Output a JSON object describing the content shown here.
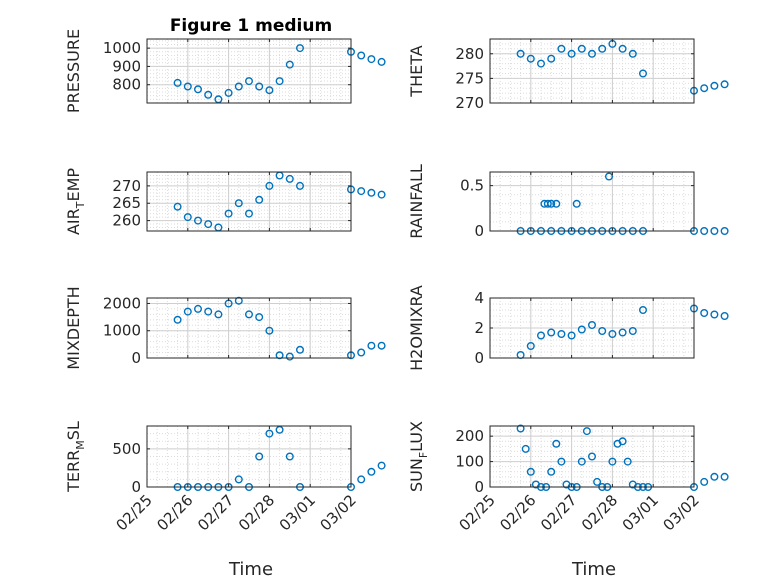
{
  "figure": {
    "title": "Figure 1 medium",
    "xlabel": "Time",
    "date_ticks": [
      "02/25",
      "02/26",
      "02/27",
      "02/28",
      "03/01",
      "03/02"
    ]
  },
  "chart_data": [
    {
      "type": "scatter",
      "ylabel": "PRESSURE",
      "ylim": [
        700,
        1050
      ],
      "yticks": [
        800,
        900,
        1000
      ],
      "grid": true,
      "marker": "open-circle",
      "color": "#0072BD",
      "x": [
        "02/25 18:00",
        "02/26 00:00",
        "02/26 06:00",
        "02/26 12:00",
        "02/26 18:00",
        "02/27 00:00",
        "02/27 06:00",
        "02/27 12:00",
        "02/27 18:00",
        "02/28 00:00",
        "02/28 06:00",
        "02/28 12:00",
        "02/28 18:00",
        "03/01 00:00",
        "03/01 06:00",
        "03/01 12:00",
        "03/01 18:00"
      ],
      "y": [
        810,
        790,
        775,
        745,
        720,
        755,
        790,
        820,
        790,
        770,
        820,
        910,
        1000,
        980,
        960,
        940,
        925
      ]
    },
    {
      "type": "scatter",
      "ylabel": "THETA",
      "ylim": [
        270,
        283
      ],
      "yticks": [
        270,
        275,
        280
      ],
      "grid": true,
      "marker": "open-circle",
      "color": "#0072BD",
      "x": [
        "02/25 18:00",
        "02/26 00:00",
        "02/26 06:00",
        "02/26 12:00",
        "02/26 18:00",
        "02/27 00:00",
        "02/27 06:00",
        "02/27 12:00",
        "02/27 18:00",
        "02/28 00:00",
        "02/28 06:00",
        "02/28 12:00",
        "02/28 18:00",
        "03/01 00:00",
        "03/01 06:00",
        "03/01 12:00",
        "03/01 18:00"
      ],
      "y": [
        280,
        279,
        278,
        279,
        281,
        280,
        281,
        280,
        281,
        282,
        281,
        280,
        276,
        272.5,
        273,
        273.5,
        273.8
      ]
    },
    {
      "type": "scatter",
      "ylabel": "AIR_TEMP",
      "ylim": [
        257,
        274
      ],
      "yticks": [
        260,
        265,
        270
      ],
      "grid": true,
      "marker": "open-circle",
      "color": "#0072BD",
      "x": [
        "02/25 18:00",
        "02/26 00:00",
        "02/26 06:00",
        "02/26 12:00",
        "02/26 18:00",
        "02/27 00:00",
        "02/27 06:00",
        "02/27 12:00",
        "02/27 18:00",
        "02/28 00:00",
        "02/28 06:00",
        "02/28 12:00",
        "02/28 18:00",
        "03/01 00:00",
        "03/01 06:00",
        "03/01 12:00",
        "03/01 18:00"
      ],
      "y": [
        264,
        261,
        260,
        259,
        258,
        262,
        265,
        262,
        266,
        270,
        273,
        272,
        270,
        269,
        268.5,
        268,
        267.5
      ]
    },
    {
      "type": "scatter",
      "ylabel": "RAINFALL",
      "ylim": [
        0,
        0.65
      ],
      "yticks": [
        0,
        0.5
      ],
      "grid": true,
      "marker": "open-circle",
      "color": "#0072BD",
      "x": [
        "02/25 18:00",
        "02/26 00:00",
        "02/26 06:00",
        "02/26 12:00",
        "02/26 18:00",
        "02/27 00:00",
        "02/27 06:00",
        "02/27 12:00",
        "02/27 18:00",
        "02/28 00:00",
        "02/28 06:00",
        "02/28 12:00",
        "02/28 18:00",
        "03/01 00:00",
        "03/01 06:00",
        "03/01 12:00",
        "03/01 18:00",
        "02/26 08:00",
        "02/26 10:00",
        "02/26 12:00",
        "02/26 15:00",
        "02/27 03:00",
        "02/27 22:00"
      ],
      "y": [
        0,
        0,
        0,
        0,
        0,
        0,
        0,
        0,
        0,
        0,
        0,
        0,
        0,
        0,
        0,
        0,
        0,
        0.3,
        0.3,
        0.3,
        0.3,
        0.3,
        0.6
      ]
    },
    {
      "type": "scatter",
      "ylabel": "MIXDEPTH",
      "ylim": [
        0,
        2200
      ],
      "yticks": [
        0,
        1000,
        2000
      ],
      "grid": true,
      "marker": "open-circle",
      "color": "#0072BD",
      "x": [
        "02/25 18:00",
        "02/26 00:00",
        "02/26 06:00",
        "02/26 12:00",
        "02/26 18:00",
        "02/27 00:00",
        "02/27 06:00",
        "02/27 12:00",
        "02/27 18:00",
        "02/28 00:00",
        "02/28 06:00",
        "02/28 12:00",
        "02/28 18:00",
        "03/01 00:00",
        "03/01 06:00",
        "03/01 12:00",
        "03/01 18:00"
      ],
      "y": [
        1400,
        1700,
        1800,
        1700,
        1600,
        2000,
        2100,
        1600,
        1500,
        1000,
        100,
        50,
        300,
        100,
        200,
        450,
        450
      ]
    },
    {
      "type": "scatter",
      "ylabel": "H2OMIXRA",
      "ylim": [
        0,
        4
      ],
      "yticks": [
        0,
        2,
        4
      ],
      "grid": true,
      "marker": "open-circle",
      "color": "#0072BD",
      "x": [
        "02/25 18:00",
        "02/26 00:00",
        "02/26 06:00",
        "02/26 12:00",
        "02/26 18:00",
        "02/27 00:00",
        "02/27 06:00",
        "02/27 12:00",
        "02/27 18:00",
        "02/28 00:00",
        "02/28 06:00",
        "02/28 12:00",
        "02/28 18:00",
        "03/01 00:00",
        "03/01 06:00",
        "03/01 12:00",
        "03/01 18:00"
      ],
      "y": [
        0.2,
        0.8,
        1.5,
        1.7,
        1.6,
        1.5,
        1.9,
        2.2,
        1.8,
        1.6,
        1.7,
        1.8,
        3.2,
        3.3,
        3.0,
        2.9,
        2.8
      ]
    },
    {
      "type": "scatter",
      "ylabel": "TERR_MSL",
      "ylim": [
        0,
        800
      ],
      "yticks": [
        0,
        500
      ],
      "grid": true,
      "marker": "open-circle",
      "color": "#0072BD",
      "x": [
        "02/25 18:00",
        "02/26 00:00",
        "02/26 06:00",
        "02/26 12:00",
        "02/26 18:00",
        "02/27 00:00",
        "02/27 06:00",
        "02/27 12:00",
        "02/27 18:00",
        "02/28 00:00",
        "02/28 06:00",
        "02/28 12:00",
        "02/28 18:00",
        "03/01 00:00",
        "03/01 06:00",
        "03/01 12:00",
        "03/01 18:00"
      ],
      "y": [
        0,
        0,
        0,
        0,
        0,
        0,
        100,
        0,
        400,
        700,
        750,
        400,
        0,
        0,
        100,
        200,
        280
      ]
    },
    {
      "type": "scatter",
      "ylabel": "SUN_FLUX",
      "ylim": [
        0,
        240
      ],
      "yticks": [
        0,
        100,
        200
      ],
      "grid": true,
      "marker": "open-circle",
      "color": "#0072BD",
      "x": [
        "02/25 18:00",
        "02/25 21:00",
        "02/26 00:00",
        "02/26 03:00",
        "02/26 06:00",
        "02/26 09:00",
        "02/26 12:00",
        "02/26 15:00",
        "02/26 18:00",
        "02/26 21:00",
        "02/27 00:00",
        "02/27 03:00",
        "02/27 06:00",
        "02/27 09:00",
        "02/27 12:00",
        "02/27 15:00",
        "02/27 18:00",
        "02/27 21:00",
        "02/28 00:00",
        "02/28 03:00",
        "02/28 06:00",
        "02/28 09:00",
        "02/28 12:00",
        "02/28 15:00",
        "02/28 18:00",
        "02/28 21:00",
        "03/01 00:00",
        "03/01 06:00",
        "03/01 12:00",
        "03/01 18:00"
      ],
      "y": [
        230,
        150,
        60,
        10,
        0,
        0,
        60,
        170,
        100,
        10,
        0,
        0,
        100,
        220,
        120,
        20,
        0,
        0,
        100,
        170,
        180,
        100,
        10,
        0,
        0,
        0,
        0,
        20,
        40,
        40
      ]
    }
  ]
}
